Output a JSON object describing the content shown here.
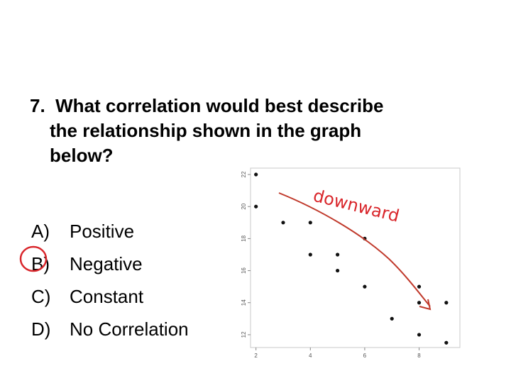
{
  "question": {
    "number": "7.",
    "lines": [
      "What correlation would best describe",
      "the relationship shown in the graph",
      "below?"
    ]
  },
  "options": [
    {
      "letter": "A)",
      "text": "Positive"
    },
    {
      "letter": "B)",
      "text": "Negative"
    },
    {
      "letter": "C)",
      "text": "Constant"
    },
    {
      "letter": "D)",
      "text": "No Correlation"
    }
  ],
  "annotation": {
    "text": "downward",
    "color": "#d9262b",
    "circled_option": "B)"
  },
  "chart_data": {
    "type": "scatter",
    "title": "",
    "xlabel": "",
    "ylabel": "",
    "xlim": [
      1.8,
      9.5
    ],
    "ylim": [
      11.2,
      22.4
    ],
    "xticks": [
      2,
      4,
      6,
      8
    ],
    "yticks": [
      12,
      14,
      16,
      18,
      20,
      22
    ],
    "grid": false,
    "series": [
      {
        "points": [
          {
            "x": 2,
            "y": 22
          },
          {
            "x": 2,
            "y": 20
          },
          {
            "x": 3,
            "y": 19
          },
          {
            "x": 4,
            "y": 19
          },
          {
            "x": 4,
            "y": 17
          },
          {
            "x": 5,
            "y": 17
          },
          {
            "x": 5,
            "y": 16
          },
          {
            "x": 6,
            "y": 18
          },
          {
            "x": 6,
            "y": 15
          },
          {
            "x": 7,
            "y": 13
          },
          {
            "x": 8,
            "y": 15
          },
          {
            "x": 8,
            "y": 14
          },
          {
            "x": 8,
            "y": 12
          },
          {
            "x": 9,
            "y": 14
          },
          {
            "x": 9,
            "y": 11.5
          }
        ]
      }
    ]
  }
}
